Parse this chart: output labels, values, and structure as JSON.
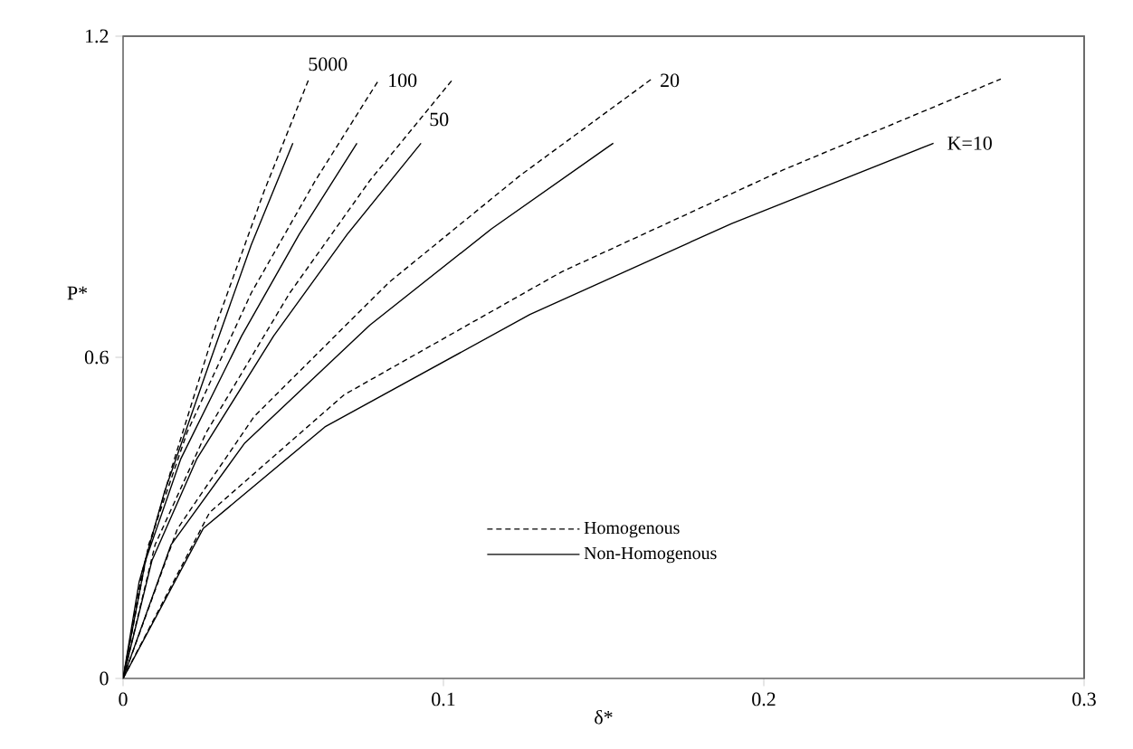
{
  "chart_data": {
    "type": "line",
    "xlabel": "δ*",
    "ylabel": "P*",
    "xlim": [
      0,
      0.3
    ],
    "ylim": [
      0,
      1.2
    ],
    "xticks": [
      0,
      0.1,
      0.2,
      0.3
    ],
    "yticks": [
      0,
      0.6,
      1.2
    ],
    "grid": false,
    "legend": "bottom",
    "marker": "none",
    "series": [
      {
        "name": "Homogenous",
        "color": "#000000",
        "line_style": "dashed",
        "x": [
          0,
          0.006,
          0.015,
          0.029,
          0.044,
          0.058
        ],
        "values": [
          0,
          0.2,
          0.39,
          0.66,
          0.91,
          1.12
        ]
      },
      {
        "name": "Non-Homogenous",
        "color": "#000000",
        "line_style": "solid",
        "x": [
          0,
          0.005,
          0.013,
          0.027,
          0.04,
          0.053
        ],
        "values": [
          0,
          0.18,
          0.35,
          0.59,
          0.81,
          1.0
        ]
      },
      {
        "color": "#000000",
        "line_style": "dashed",
        "x": [
          0,
          0.008,
          0.02,
          0.04,
          0.06,
          0.08
        ],
        "values": [
          0,
          0.25,
          0.46,
          0.72,
          0.93,
          1.12
        ]
      },
      {
        "color": "#000000",
        "line_style": "solid",
        "x": [
          0,
          0.007,
          0.018,
          0.037,
          0.055,
          0.073
        ],
        "values": [
          0,
          0.22,
          0.41,
          0.64,
          0.83,
          1.0
        ]
      },
      {
        "color": "#000000",
        "line_style": "dashed",
        "x": [
          0,
          0.01,
          0.026,
          0.052,
          0.077,
          0.103
        ],
        "values": [
          0,
          0.25,
          0.46,
          0.72,
          0.93,
          1.12
        ]
      },
      {
        "color": "#000000",
        "line_style": "solid",
        "x": [
          0,
          0.009,
          0.023,
          0.047,
          0.07,
          0.093
        ],
        "values": [
          0,
          0.22,
          0.41,
          0.64,
          0.83,
          1.0
        ]
      },
      {
        "color": "#000000",
        "line_style": "dashed",
        "x": [
          0,
          0.017,
          0.041,
          0.083,
          0.124,
          0.165
        ],
        "values": [
          0,
          0.28,
          0.49,
          0.74,
          0.94,
          1.12
        ]
      },
      {
        "color": "#000000",
        "line_style": "solid",
        "x": [
          0,
          0.015,
          0.038,
          0.077,
          0.115,
          0.153
        ],
        "values": [
          0,
          0.25,
          0.44,
          0.66,
          0.84,
          1.0
        ]
      },
      {
        "color": "#000000",
        "line_style": "dashed",
        "x": [
          0,
          0.027,
          0.069,
          0.137,
          0.206,
          0.274
        ],
        "values": [
          0,
          0.31,
          0.53,
          0.76,
          0.95,
          1.12
        ]
      },
      {
        "color": "#000000",
        "line_style": "solid",
        "x": [
          0,
          0.025,
          0.063,
          0.127,
          0.19,
          0.253
        ],
        "values": [
          0,
          0.28,
          0.47,
          0.68,
          0.85,
          1.0
        ]
      }
    ],
    "annotations": [
      "5000",
      "100",
      "50",
      "20",
      "K=10"
    ]
  }
}
